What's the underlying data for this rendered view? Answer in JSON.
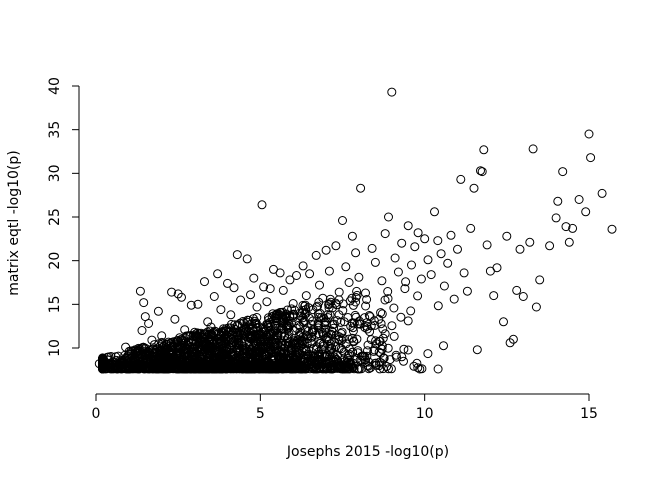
{
  "chart_data": {
    "type": "scatter",
    "title": "",
    "xlabel": "Josephs 2015 -log10(p)",
    "ylabel": "matrix eqtl -log10(p)",
    "xlim": [
      0,
      15
    ],
    "ylim": [
      10,
      40
    ],
    "xticks": [
      0,
      5,
      10,
      15
    ],
    "yticks": [
      10,
      15,
      20,
      25,
      30,
      35,
      40
    ],
    "marker": "open-circle",
    "grid": false,
    "legend": "none",
    "point_count": "approx. 2500",
    "series": [
      {
        "points": [
          [
            0.1,
            8.2
          ],
          [
            0.3,
            7.9
          ],
          [
            0.5,
            8.4
          ],
          [
            0.6,
            9.0
          ],
          [
            0.7,
            8.1
          ],
          [
            0.8,
            8.6
          ],
          [
            0.9,
            10.1
          ],
          [
            1.0,
            9.3
          ],
          [
            1.1,
            8.3
          ],
          [
            1.2,
            9.8
          ],
          [
            1.3,
            8.8
          ],
          [
            1.35,
            16.5
          ],
          [
            1.4,
            12.0
          ],
          [
            1.45,
            15.2
          ],
          [
            1.5,
            13.6
          ],
          [
            1.6,
            12.8
          ],
          [
            1.7,
            10.9
          ],
          [
            1.8,
            9.5
          ],
          [
            1.9,
            14.2
          ],
          [
            2.0,
            11.4
          ],
          [
            2.1,
            9.1
          ],
          [
            2.2,
            8.5
          ],
          [
            2.3,
            16.4
          ],
          [
            2.4,
            13.3
          ],
          [
            2.5,
            16.2
          ],
          [
            2.6,
            15.8
          ],
          [
            2.7,
            12.1
          ],
          [
            2.8,
            10.7
          ],
          [
            2.9,
            14.9
          ],
          [
            3.0,
            11.8
          ],
          [
            3.1,
            15.0
          ],
          [
            3.2,
            9.9
          ],
          [
            3.3,
            17.6
          ],
          [
            3.4,
            13.0
          ],
          [
            3.5,
            12.4
          ],
          [
            3.6,
            15.9
          ],
          [
            3.7,
            18.5
          ],
          [
            3.8,
            14.4
          ],
          [
            3.9,
            11.2
          ],
          [
            4.0,
            17.4
          ],
          [
            4.1,
            13.8
          ],
          [
            4.2,
            16.9
          ],
          [
            4.3,
            20.7
          ],
          [
            4.4,
            15.5
          ],
          [
            4.5,
            12.9
          ],
          [
            4.6,
            20.2
          ],
          [
            4.7,
            16.1
          ],
          [
            4.8,
            18.0
          ],
          [
            4.9,
            14.7
          ],
          [
            5.0,
            11.6
          ],
          [
            5.05,
            26.4
          ],
          [
            5.1,
            17.0
          ],
          [
            5.2,
            15.3
          ],
          [
            5.3,
            16.8
          ],
          [
            5.4,
            19.0
          ],
          [
            5.5,
            13.9
          ],
          [
            5.6,
            18.6
          ],
          [
            5.7,
            16.6
          ],
          [
            5.8,
            12.6
          ],
          [
            5.9,
            17.8
          ],
          [
            6.0,
            15.1
          ],
          [
            6.1,
            18.3
          ],
          [
            6.2,
            14.0
          ],
          [
            6.3,
            19.4
          ],
          [
            6.4,
            16.0
          ],
          [
            6.5,
            18.5
          ],
          [
            6.6,
            13.1
          ],
          [
            6.7,
            20.6
          ],
          [
            6.8,
            17.2
          ],
          [
            6.9,
            15.7
          ],
          [
            7.0,
            21.2
          ],
          [
            7.1,
            18.8
          ],
          [
            7.2,
            14.6
          ],
          [
            7.3,
            21.7
          ],
          [
            7.4,
            16.4
          ],
          [
            7.5,
            24.6
          ],
          [
            7.6,
            19.3
          ],
          [
            7.7,
            17.5
          ],
          [
            7.8,
            22.8
          ],
          [
            7.9,
            20.9
          ],
          [
            8.0,
            18.1
          ],
          [
            8.05,
            28.3
          ],
          [
            8.2,
            16.3
          ],
          [
            8.4,
            21.4
          ],
          [
            8.5,
            19.8
          ],
          [
            8.7,
            17.7
          ],
          [
            8.8,
            23.1
          ],
          [
            8.9,
            25.0
          ],
          [
            9.0,
            39.3
          ],
          [
            9.1,
            20.3
          ],
          [
            9.2,
            18.7
          ],
          [
            9.3,
            22.0
          ],
          [
            9.4,
            16.8
          ],
          [
            9.5,
            24.0
          ],
          [
            9.6,
            19.5
          ],
          [
            9.7,
            21.6
          ],
          [
            9.8,
            23.2
          ],
          [
            9.9,
            17.9
          ],
          [
            10.0,
            22.5
          ],
          [
            10.1,
            20.1
          ],
          [
            10.2,
            18.4
          ],
          [
            10.3,
            25.6
          ],
          [
            10.4,
            22.3
          ],
          [
            10.5,
            20.8
          ],
          [
            10.6,
            17.1
          ],
          [
            10.7,
            19.7
          ],
          [
            10.8,
            22.9
          ],
          [
            10.9,
            15.6
          ],
          [
            11.0,
            21.3
          ],
          [
            11.1,
            29.3
          ],
          [
            11.2,
            18.6
          ],
          [
            11.3,
            16.5
          ],
          [
            11.4,
            23.7
          ],
          [
            11.5,
            28.3
          ],
          [
            11.6,
            9.8
          ],
          [
            11.7,
            30.3
          ],
          [
            11.75,
            30.2
          ],
          [
            11.8,
            32.7
          ],
          [
            11.9,
            21.8
          ],
          [
            12.0,
            18.8
          ],
          [
            12.1,
            16.0
          ],
          [
            12.2,
            19.2
          ],
          [
            12.4,
            13.0
          ],
          [
            12.5,
            22.8
          ],
          [
            12.6,
            10.6
          ],
          [
            12.7,
            11.0
          ],
          [
            12.8,
            16.6
          ],
          [
            12.9,
            21.3
          ],
          [
            13.0,
            15.9
          ],
          [
            13.2,
            22.1
          ],
          [
            13.3,
            32.8
          ],
          [
            13.4,
            14.7
          ],
          [
            13.5,
            17.8
          ],
          [
            13.8,
            21.7
          ],
          [
            14.0,
            24.9
          ],
          [
            14.05,
            26.8
          ],
          [
            14.2,
            30.2
          ],
          [
            14.3,
            23.9
          ],
          [
            14.4,
            22.1
          ],
          [
            14.5,
            23.7
          ],
          [
            14.7,
            27.0
          ],
          [
            14.9,
            25.6
          ],
          [
            15.0,
            34.5
          ],
          [
            15.05,
            31.8
          ],
          [
            15.4,
            27.7
          ],
          [
            15.7,
            23.6
          ]
        ]
      }
    ]
  }
}
